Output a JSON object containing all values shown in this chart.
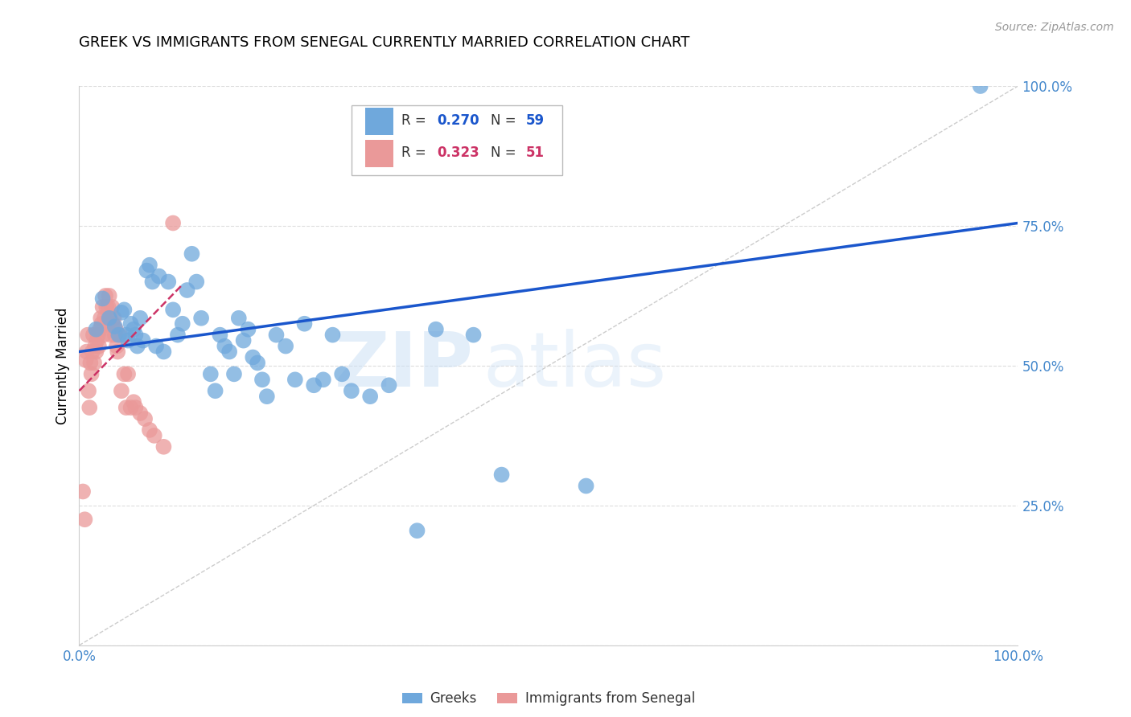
{
  "title": "GREEK VS IMMIGRANTS FROM SENEGAL CURRENTLY MARRIED CORRELATION CHART",
  "source": "Source: ZipAtlas.com",
  "ylabel": "Currently Married",
  "xlim": [
    0,
    1.0
  ],
  "ylim": [
    0,
    1.0
  ],
  "xticks": [
    0.0,
    0.1,
    0.2,
    0.3,
    0.4,
    0.5,
    0.6,
    0.7,
    0.8,
    0.9,
    1.0
  ],
  "yticks": [
    0.0,
    0.25,
    0.5,
    0.75,
    1.0
  ],
  "xticklabels": [
    "0.0%",
    "",
    "",
    "",
    "",
    "",
    "",
    "",
    "",
    "",
    "100.0%"
  ],
  "yticklabels": [
    "",
    "25.0%",
    "50.0%",
    "75.0%",
    "100.0%"
  ],
  "legend_r_greek": "0.270",
  "legend_n_greek": "59",
  "legend_r_senegal": "0.323",
  "legend_n_senegal": "51",
  "greek_color": "#6fa8dc",
  "senegal_color": "#ea9999",
  "trend_greek_color": "#1a56cc",
  "trend_senegal_color": "#cc3366",
  "diagonal_color": "#cccccc",
  "watermark_zip": "ZIP",
  "watermark_atlas": "atlas",
  "background_color": "#ffffff",
  "grid_color": "#dddddd",
  "axis_label_color": "#4488cc",
  "greek_scatter_x": [
    0.018,
    0.025,
    0.032,
    0.038,
    0.042,
    0.045,
    0.048,
    0.05,
    0.052,
    0.055,
    0.058,
    0.06,
    0.062,
    0.065,
    0.068,
    0.072,
    0.075,
    0.078,
    0.082,
    0.085,
    0.09,
    0.095,
    0.1,
    0.105,
    0.11,
    0.115,
    0.12,
    0.125,
    0.13,
    0.14,
    0.145,
    0.15,
    0.155,
    0.16,
    0.165,
    0.17,
    0.175,
    0.18,
    0.185,
    0.19,
    0.195,
    0.2,
    0.21,
    0.22,
    0.23,
    0.24,
    0.25,
    0.26,
    0.27,
    0.28,
    0.29,
    0.31,
    0.33,
    0.36,
    0.38,
    0.42,
    0.45,
    0.54,
    0.96
  ],
  "greek_scatter_y": [
    0.565,
    0.62,
    0.585,
    0.57,
    0.555,
    0.595,
    0.6,
    0.555,
    0.545,
    0.575,
    0.565,
    0.555,
    0.535,
    0.585,
    0.545,
    0.67,
    0.68,
    0.65,
    0.535,
    0.66,
    0.525,
    0.65,
    0.6,
    0.555,
    0.575,
    0.635,
    0.7,
    0.65,
    0.585,
    0.485,
    0.455,
    0.555,
    0.535,
    0.525,
    0.485,
    0.585,
    0.545,
    0.565,
    0.515,
    0.505,
    0.475,
    0.445,
    0.555,
    0.535,
    0.475,
    0.575,
    0.465,
    0.475,
    0.555,
    0.485,
    0.455,
    0.445,
    0.465,
    0.205,
    0.565,
    0.555,
    0.305,
    0.285,
    1.0
  ],
  "senegal_scatter_x": [
    0.004,
    0.006,
    0.007,
    0.008,
    0.009,
    0.01,
    0.011,
    0.012,
    0.013,
    0.014,
    0.015,
    0.016,
    0.017,
    0.018,
    0.019,
    0.02,
    0.021,
    0.022,
    0.023,
    0.024,
    0.025,
    0.026,
    0.027,
    0.028,
    0.029,
    0.03,
    0.031,
    0.032,
    0.033,
    0.034,
    0.035,
    0.036,
    0.037,
    0.038,
    0.039,
    0.04,
    0.041,
    0.043,
    0.045,
    0.048,
    0.05,
    0.052,
    0.055,
    0.058,
    0.06,
    0.065,
    0.07,
    0.075,
    0.08,
    0.09,
    0.1
  ],
  "senegal_scatter_y": [
    0.275,
    0.225,
    0.51,
    0.525,
    0.555,
    0.455,
    0.425,
    0.505,
    0.485,
    0.525,
    0.555,
    0.505,
    0.535,
    0.525,
    0.545,
    0.555,
    0.535,
    0.565,
    0.585,
    0.575,
    0.605,
    0.555,
    0.585,
    0.625,
    0.605,
    0.575,
    0.605,
    0.625,
    0.585,
    0.555,
    0.605,
    0.575,
    0.585,
    0.555,
    0.565,
    0.535,
    0.525,
    0.555,
    0.455,
    0.485,
    0.425,
    0.485,
    0.425,
    0.435,
    0.425,
    0.415,
    0.405,
    0.385,
    0.375,
    0.355,
    0.755
  ],
  "greek_trend_x": [
    0.0,
    1.0
  ],
  "greek_trend_y": [
    0.525,
    0.755
  ],
  "senegal_trend_x": [
    0.0,
    0.11
  ],
  "senegal_trend_y": [
    0.455,
    0.645
  ]
}
